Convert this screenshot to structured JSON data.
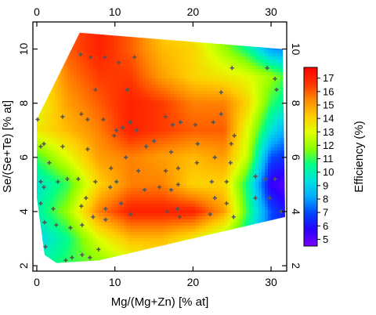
{
  "chart_data": {
    "type": "heatmap",
    "title": "",
    "xlabel": "Mg/(Mg+Zn) [% at]",
    "ylabel": "Se/(Se+Te) [% at]",
    "xlim": [
      -0.5,
      32
    ],
    "ylim": [
      1.8,
      11
    ],
    "x_ticks": [
      0,
      10,
      20,
      30
    ],
    "y_ticks": [
      2,
      4,
      6,
      8,
      10
    ],
    "x_tick_labels": [
      "0",
      "10",
      "20",
      "30"
    ],
    "y_tick_labels": [
      "2",
      "4",
      "6",
      "8",
      "10"
    ],
    "mirror_axes": true,
    "grid": false,
    "colorbar": {
      "label": "Efficiency (%)",
      "min": 4.5,
      "max": 17.8,
      "ticks": [
        5,
        6,
        7,
        8,
        9,
        10,
        11,
        12,
        13,
        14,
        15,
        16,
        17
      ],
      "tick_labels": [
        "5",
        "6",
        "7",
        "8",
        "9",
        "10",
        "11",
        "12",
        "13",
        "14",
        "15",
        "16",
        "17"
      ],
      "colors": [
        "#7a00ff",
        "#2a00ff",
        "#0044ff",
        "#00aaff",
        "#00e0e0",
        "#00ff88",
        "#8cff00",
        "#e0ff00",
        "#ffcc00",
        "#ff8800",
        "#ff3300",
        "#ff0000"
      ]
    },
    "region_polygon": [
      [
        5.5,
        10.6
      ],
      [
        31.5,
        10.0
      ],
      [
        31.8,
        3.8
      ],
      [
        8,
        2.2
      ],
      [
        2.5,
        2.1
      ],
      [
        1.0,
        2.4
      ],
      [
        0,
        4.5
      ],
      [
        0,
        7.4
      ]
    ],
    "efficiency_map": {
      "x": [
        0,
        4,
        8,
        12,
        16,
        20,
        24,
        27,
        30,
        32
      ],
      "y": [
        2,
        3,
        4,
        5,
        6,
        7,
        8,
        9,
        10,
        11
      ],
      "z": [
        [
          10.0,
          11.0,
          11.5,
          12.5,
          13.5,
          12.0,
          10.0,
          9.0,
          7.5,
          7.0
        ],
        [
          9.0,
          10.5,
          13.0,
          14.5,
          14.5,
          13.5,
          12.0,
          10.0,
          7.0,
          6.5
        ],
        [
          10.0,
          12.0,
          15.5,
          17.0,
          17.0,
          17.0,
          15.0,
          11.0,
          7.0,
          6.0
        ],
        [
          9.5,
          11.0,
          14.0,
          15.5,
          15.5,
          14.0,
          14.0,
          10.5,
          5.5,
          5.0
        ],
        [
          11.0,
          13.0,
          15.0,
          15.5,
          15.0,
          14.5,
          15.0,
          12.5,
          7.0,
          6.5
        ],
        [
          13.5,
          14.5,
          15.5,
          17.0,
          16.5,
          16.0,
          16.0,
          13.0,
          9.5,
          8.0
        ],
        [
          13.0,
          15.0,
          16.0,
          17.0,
          16.5,
          15.5,
          15.5,
          14.0,
          11.0,
          10.0
        ],
        [
          13.0,
          15.5,
          16.5,
          16.5,
          15.0,
          14.0,
          13.5,
          13.0,
          12.0,
          11.0
        ],
        [
          13.0,
          16.0,
          17.0,
          16.0,
          14.5,
          14.0,
          12.0,
          10.5,
          8.0,
          7.5
        ],
        [
          13.0,
          16.0,
          17.0,
          16.0,
          14.0,
          13.0,
          11.0,
          9.0,
          8.0,
          7.5
        ]
      ]
    },
    "measurement_points": [
      [
        5.6,
        9.8
      ],
      [
        6.9,
        9.7
      ],
      [
        8.7,
        9.7
      ],
      [
        10.5,
        9.5
      ],
      [
        12.5,
        9.7
      ],
      [
        25.0,
        9.3
      ],
      [
        29.5,
        9.3
      ],
      [
        30.5,
        8.9
      ],
      [
        7.5,
        8.5
      ],
      [
        11.6,
        8.5
      ],
      [
        23.6,
        8.4
      ],
      [
        30.7,
        8.5
      ],
      [
        0.1,
        7.4
      ],
      [
        3.3,
        7.5
      ],
      [
        5.7,
        7.6
      ],
      [
        6.5,
        7.4
      ],
      [
        8.5,
        7.4
      ],
      [
        10.2,
        7.0
      ],
      [
        12.0,
        7.3
      ],
      [
        12.8,
        7.0
      ],
      [
        16.5,
        7.5
      ],
      [
        17.4,
        7.2
      ],
      [
        18.4,
        7.3
      ],
      [
        20.3,
        7.2
      ],
      [
        22.6,
        7.3
      ],
      [
        23.6,
        7.6
      ],
      [
        25.3,
        6.8
      ],
      [
        9.9,
        6.8
      ],
      [
        11.0,
        7.1
      ],
      [
        0.5,
        6.4
      ],
      [
        0.9,
        6.5
      ],
      [
        3.3,
        6.4
      ],
      [
        6.5,
        6.3
      ],
      [
        14.0,
        6.4
      ],
      [
        15.0,
        6.6
      ],
      [
        17.2,
        6.2
      ],
      [
        20.6,
        6.5
      ],
      [
        22.8,
        6.0
      ],
      [
        24.9,
        6.5
      ],
      [
        1.6,
        5.8
      ],
      [
        9.5,
        5.6
      ],
      [
        11.4,
        6.0
      ],
      [
        16.5,
        5.5
      ],
      [
        18.1,
        5.6
      ],
      [
        20.5,
        5.8
      ],
      [
        24.8,
        5.8
      ],
      [
        0.5,
        5.1
      ],
      [
        0.9,
        4.9
      ],
      [
        2.7,
        5.1
      ],
      [
        3.9,
        5.2
      ],
      [
        5.3,
        5.2
      ],
      [
        7.5,
        5.1
      ],
      [
        9.4,
        4.9
      ],
      [
        10.2,
        5.1
      ],
      [
        13.0,
        5.5
      ],
      [
        13.8,
        4.8
      ],
      [
        15.7,
        4.9
      ],
      [
        17.2,
        4.8
      ],
      [
        18.1,
        5.0
      ],
      [
        22.4,
        5.1
      ],
      [
        24.3,
        5.1
      ],
      [
        28.0,
        5.3
      ],
      [
        29.3,
        5.2
      ],
      [
        30.5,
        5.2
      ],
      [
        0.5,
        4.3
      ],
      [
        2.1,
        4.1
      ],
      [
        5.7,
        4.2
      ],
      [
        6.3,
        4.5
      ],
      [
        8.8,
        4.1
      ],
      [
        10.8,
        4.3
      ],
      [
        12.0,
        3.9
      ],
      [
        16.7,
        4.0
      ],
      [
        18.0,
        4.1
      ],
      [
        22.8,
        4.5
      ],
      [
        24.3,
        4.3
      ],
      [
        28.0,
        4.5
      ],
      [
        29.8,
        4.5
      ],
      [
        31.3,
        4.0
      ],
      [
        1.0,
        3.6
      ],
      [
        2.5,
        3.5
      ],
      [
        4.3,
        3.4
      ],
      [
        5.8,
        3.5
      ],
      [
        7.2,
        3.8
      ],
      [
        8.8,
        3.7
      ],
      [
        18.3,
        3.8
      ],
      [
        22.2,
        3.9
      ],
      [
        25.2,
        3.8
      ],
      [
        1.1,
        2.7
      ],
      [
        3.7,
        2.2
      ],
      [
        4.5,
        2.3
      ],
      [
        5.8,
        2.4
      ],
      [
        6.8,
        2.3
      ],
      [
        7.9,
        2.6
      ]
    ]
  }
}
